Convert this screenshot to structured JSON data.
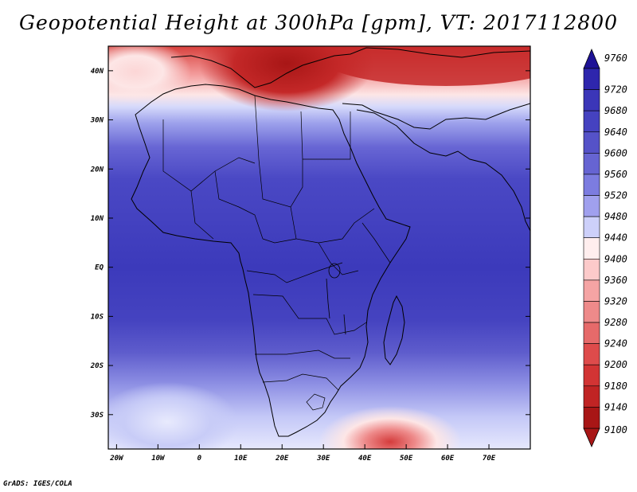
{
  "title": "Geopotential Height at 300hPa [gpm], VT: 2017112800",
  "footer": "GrADS: IGES/COLA",
  "map": {
    "lon_range": [
      -22,
      80
    ],
    "lat_range": [
      -37,
      45
    ],
    "lon_ticks": [
      {
        "value": -20,
        "label": "20W"
      },
      {
        "value": -10,
        "label": "10W"
      },
      {
        "value": 0,
        "label": "0"
      },
      {
        "value": 10,
        "label": "10E"
      },
      {
        "value": 20,
        "label": "20E"
      },
      {
        "value": 30,
        "label": "30E"
      },
      {
        "value": 40,
        "label": "40E"
      },
      {
        "value": 50,
        "label": "50E"
      },
      {
        "value": 60,
        "label": "60E"
      },
      {
        "value": 70,
        "label": "70E"
      }
    ],
    "lat_ticks": [
      {
        "value": 40,
        "label": "40N"
      },
      {
        "value": 30,
        "label": "30N"
      },
      {
        "value": 20,
        "label": "20N"
      },
      {
        "value": 10,
        "label": "10N"
      },
      {
        "value": 0,
        "label": "EQ"
      },
      {
        "value": -10,
        "label": "10S"
      },
      {
        "value": -20,
        "label": "20S"
      },
      {
        "value": -30,
        "label": "30S"
      }
    ]
  },
  "colorbar": {
    "levels": [
      {
        "label": "9760",
        "color": "#1e1296"
      },
      {
        "label": "9720",
        "color": "#2e26ad"
      },
      {
        "label": "9680",
        "color": "#3b36b8"
      },
      {
        "label": "9640",
        "color": "#4542c0"
      },
      {
        "label": "9600",
        "color": "#5552c8"
      },
      {
        "label": "9560",
        "color": "#6664d2"
      },
      {
        "label": "9520",
        "color": "#7c7ce0"
      },
      {
        "label": "9480",
        "color": "#a0a0ee"
      },
      {
        "label": "9440",
        "color": "#cdd0fa"
      },
      {
        "label": "9400",
        "color": "#ffeeee"
      },
      {
        "label": "9360",
        "color": "#fccaca"
      },
      {
        "label": "9320",
        "color": "#f5a4a4"
      },
      {
        "label": "9280",
        "color": "#ee8a8a"
      },
      {
        "label": "9240",
        "color": "#e66a6a"
      },
      {
        "label": "9200",
        "color": "#de4b4b"
      },
      {
        "label": "9180",
        "color": "#d23434"
      },
      {
        "label": "9140",
        "color": "#c02424"
      },
      {
        "label": "9100",
        "color": "#a81616"
      }
    ]
  }
}
